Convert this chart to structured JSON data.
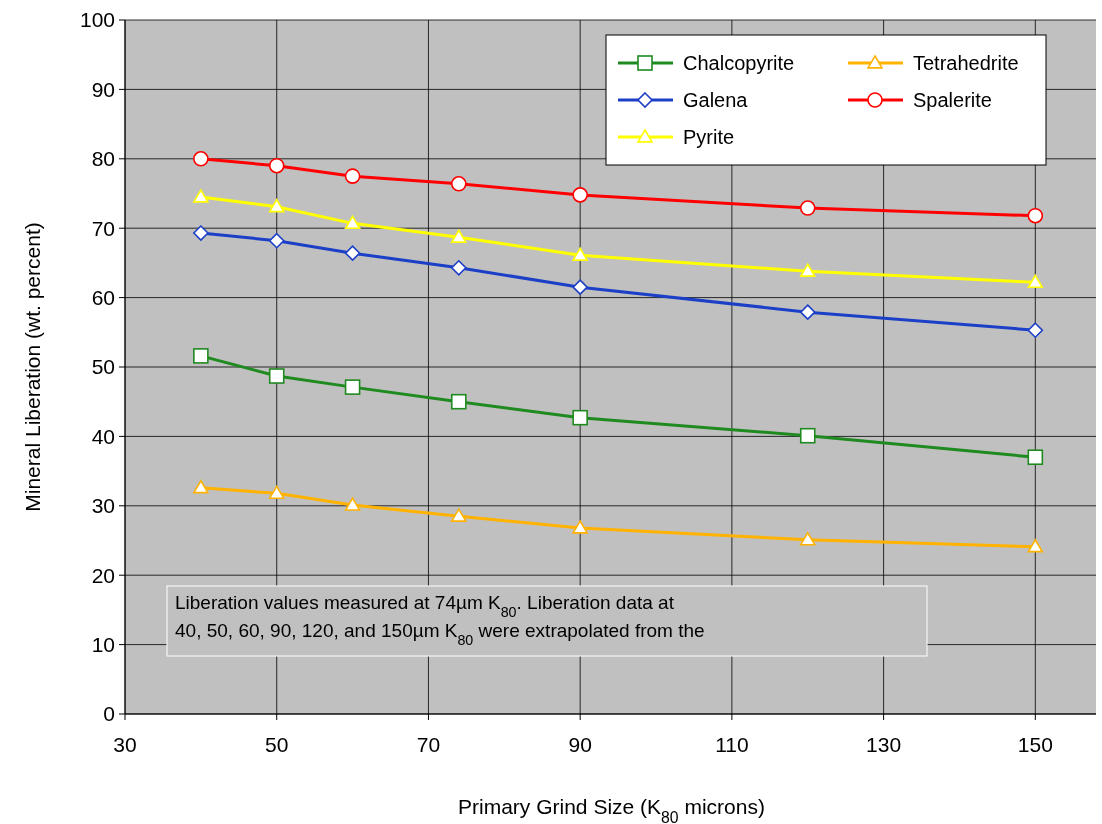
{
  "chart_data": {
    "type": "line",
    "xlabel": "Primary Grind Size (K$_{80}$ microns)",
    "ylabel": "Mineral Liberation (wt. percent)",
    "x": [
      40,
      50,
      60,
      74,
      90,
      120,
      150
    ],
    "xlim": [
      30,
      158
    ],
    "xticks": [
      30,
      50,
      70,
      90,
      110,
      130,
      150
    ],
    "ylim": [
      0,
      100
    ],
    "yticks": [
      0,
      10,
      20,
      30,
      40,
      50,
      60,
      70,
      80,
      90,
      100
    ],
    "grid": true,
    "legend": "top right",
    "line_style": "solid",
    "series": [
      {
        "name": "Chalcopyrite",
        "color": "#1f8a1f",
        "marker": "square",
        "values": [
          51.6,
          48.7,
          47.1,
          45.0,
          42.7,
          40.1,
          37.0
        ]
      },
      {
        "name": "Tetrahedrite",
        "color": "#ffb300",
        "marker": "triangle",
        "values": [
          32.6,
          31.8,
          30.1,
          28.5,
          26.8,
          25.1,
          24.1
        ]
      },
      {
        "name": "Galena",
        "color": "#1c3fc8",
        "marker": "diamond",
        "values": [
          69.3,
          68.2,
          66.4,
          64.3,
          61.5,
          57.9,
          55.3
        ]
      },
      {
        "name": "Spalerite",
        "color": "#ff0000",
        "marker": "circle",
        "values": [
          80.0,
          79.0,
          77.5,
          76.4,
          74.8,
          72.9,
          71.8
        ]
      },
      {
        "name": "Pyrite",
        "color": "#ffff00",
        "marker": "triangle",
        "values": [
          74.5,
          73.1,
          70.7,
          68.7,
          66.1,
          63.8,
          62.2
        ]
      }
    ],
    "annotations": [
      "Liberation values measured at 74µm K$_{80}$. Liberation data at",
      "40, 50, 60, 90, 120, and 150µm K$_{80}$ were extrapolated from the"
    ]
  }
}
